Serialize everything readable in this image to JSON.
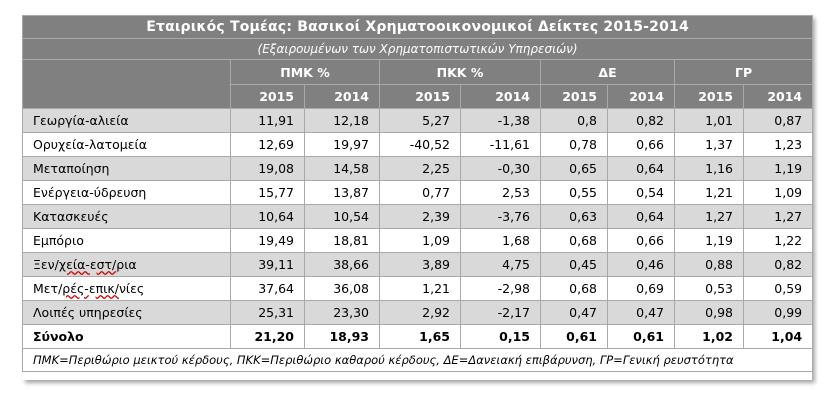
{
  "title": "Εταιρικός Τομέας: Βασικοί Χρηματοοικονομικοί Δείκτες 2015-2014",
  "subtitle": "(Εξαιρουμένων των Χρηματοπιστωτικών Υπηρεσιών)",
  "groups": [
    "ΠΜΚ %",
    "ΠΚΚ %",
    "ΔΕ",
    "ΓΡ"
  ],
  "years": [
    "2015",
    "2014",
    "2015",
    "2014",
    "2015",
    "2014",
    "2015",
    "2014"
  ],
  "rows": [
    {
      "label": "Γεωργία-αλιεία",
      "values": [
        "11,91",
        "12,18",
        "5,27",
        "-1,38",
        "0,8",
        "0,82",
        "1,01",
        "0,87"
      ]
    },
    {
      "label": "Ορυχεία-λατομεία",
      "values": [
        "12,69",
        "19,97",
        "-40,52",
        "-11,61",
        "0,78",
        "0,66",
        "1,37",
        "1,23"
      ]
    },
    {
      "label": "Μεταποίηση",
      "values": [
        "19,08",
        "14,58",
        "2,25",
        "-0,30",
        "0,65",
        "0,64",
        "1,16",
        "1,19"
      ]
    },
    {
      "label": "Ενέργεια-ύδρευση",
      "values": [
        "15,77",
        "13,87",
        "0,77",
        "2,53",
        "0,55",
        "0,54",
        "1,21",
        "1,09"
      ]
    },
    {
      "label": "Κατασκευές",
      "values": [
        "10,64",
        "10,54",
        "2,39",
        "-3,76",
        "0,63",
        "0,64",
        "1,27",
        "1,27"
      ]
    },
    {
      "label": "Εμπόριο",
      "values": [
        "19,49",
        "18,81",
        "1,09",
        "1,68",
        "0,68",
        "0,66",
        "1,19",
        "1,22"
      ]
    },
    {
      "label": "Ξεν/χεία-εστ/ρια",
      "values": [
        "39,11",
        "38,66",
        "3,89",
        "4,75",
        "0,45",
        "0,46",
        "0,88",
        "0,82"
      ]
    },
    {
      "label": "Μετ/ρές-επικ/νίες",
      "values": [
        "37,64",
        "36,08",
        "1,21",
        "-2,98",
        "0,68",
        "0,69",
        "0,53",
        "0,59"
      ]
    },
    {
      "label": "Λοιπές υπηρεσίες",
      "values": [
        "25,31",
        "23,30",
        "2,92",
        "-2,17",
        "0,47",
        "0,47",
        "0,98",
        "0,99"
      ]
    }
  ],
  "total": {
    "label": "Σύνολο",
    "values": [
      "21,20",
      "18,93",
      "1,65",
      "0,15",
      "0,61",
      "0,61",
      "1,02",
      "1,04"
    ]
  },
  "footnote": "ΠΜΚ=Περιθώριο μεικτού κέρδους, ΠΚΚ=Περιθώριο καθαρού κέρδους, ΔΕ=Δανειακή επιβάρυνση, ΓΡ=Γενική ρευστότητα",
  "colors": {
    "header_bg": "#808080",
    "header_text": "#ffffff",
    "shaded_row": "#d9d9d9",
    "border": "#a9a9a9"
  }
}
